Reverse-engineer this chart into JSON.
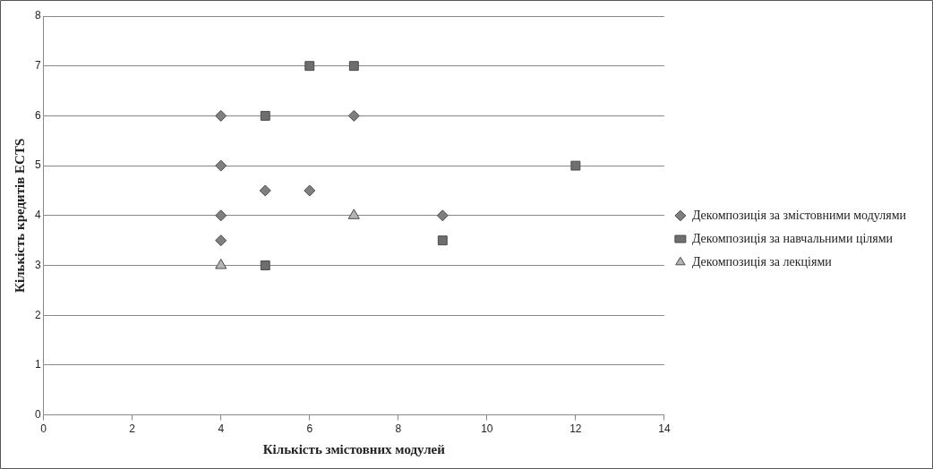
{
  "chart_data": {
    "type": "scatter",
    "xlabel": "Кількість змістовних модулей",
    "ylabel": "Кількість кредитів ECTS",
    "xlim": [
      0,
      14
    ],
    "xticks": [
      0,
      2,
      4,
      6,
      8,
      10,
      12,
      14
    ],
    "ylim": [
      0,
      8
    ],
    "yticks": [
      0,
      1,
      2,
      3,
      4,
      5,
      6,
      7,
      8
    ],
    "grid": "y",
    "legend": "right",
    "series": [
      {
        "name": "Декомпозиція за змістовними модулями",
        "color": "#7f7f7f",
        "marker": "diamond",
        "x": [
          4,
          4,
          4,
          4,
          5,
          6,
          7,
          9
        ],
        "values": [
          6,
          5,
          4,
          3.5,
          4.5,
          4.5,
          6,
          4
        ]
      },
      {
        "name": "Декомпозиція за навчальними цілями",
        "color": "#6e6e6e",
        "marker": "square",
        "x": [
          6,
          7,
          5,
          12,
          9,
          5
        ],
        "values": [
          7,
          7,
          6,
          5,
          3.5,
          3
        ]
      },
      {
        "name": "Декомпозиція за лекціями",
        "color": "#b4b4b4",
        "marker": "triangle",
        "x": [
          4,
          7
        ],
        "values": [
          3,
          4
        ]
      }
    ]
  }
}
